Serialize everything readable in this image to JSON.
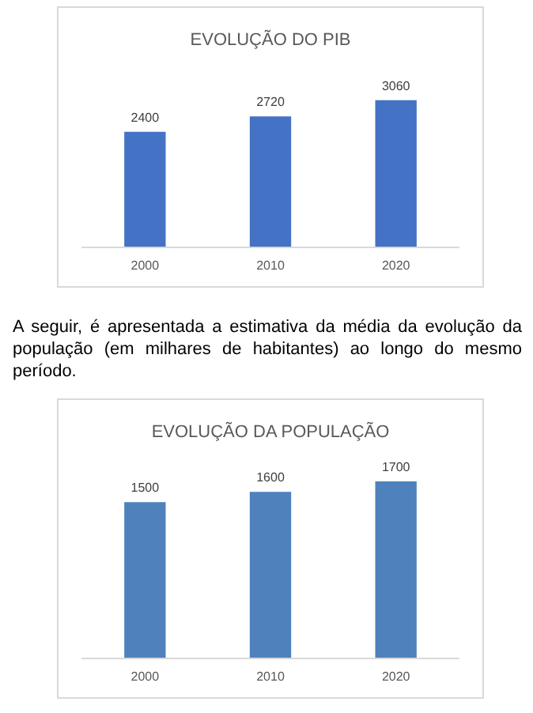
{
  "chart_data": [
    {
      "type": "bar",
      "title": "EVOLUÇÃO DO PIB",
      "categories": [
        "2000",
        "2010",
        "2020"
      ],
      "values": [
        2400,
        2720,
        3060
      ],
      "color": "#4472c4",
      "data_labels": true
    },
    {
      "type": "bar",
      "title": "EVOLUÇÃO DA POPULAÇÃO",
      "subtitle": "A seguir, é apresentada a estimativa da média da evolução da população (em milhares de habitantes) ao longo do mesmo período.",
      "categories": [
        "2000",
        "2010",
        "2020"
      ],
      "values": [
        1500,
        1600,
        1700
      ],
      "color": "#4f81bd",
      "data_labels": true
    }
  ]
}
